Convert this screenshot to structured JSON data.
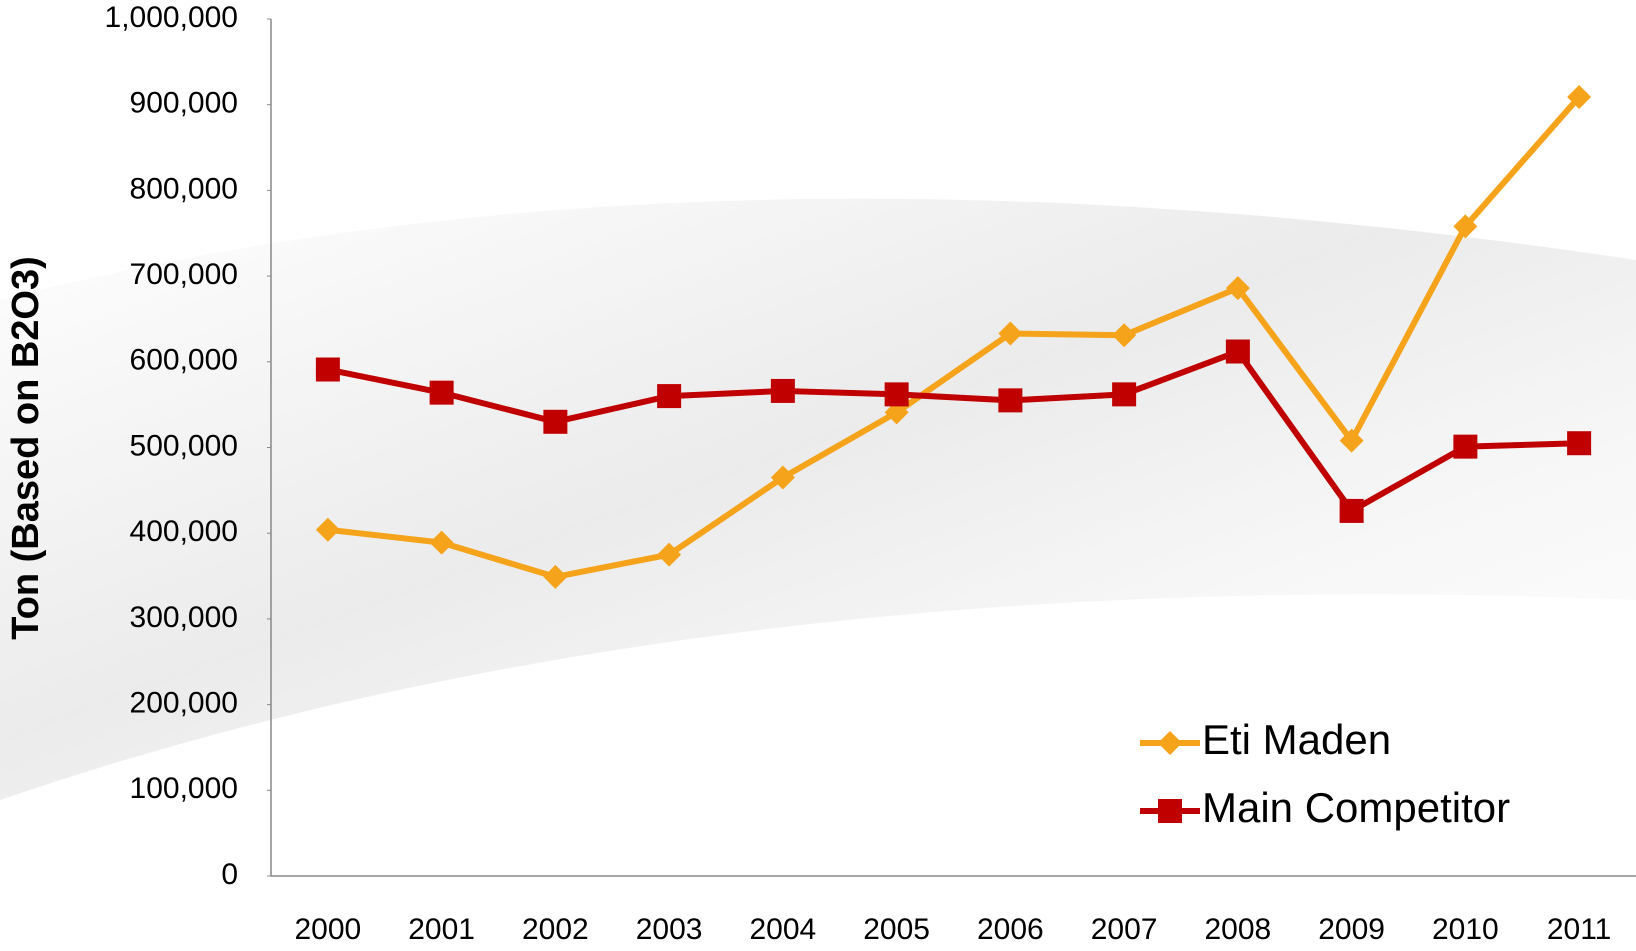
{
  "chart_data": {
    "type": "line",
    "y_label": "Ton (Based on B2O3)",
    "categories": [
      "2000",
      "2001",
      "2002",
      "2003",
      "2004",
      "2005",
      "2006",
      "2007",
      "2008",
      "2009",
      "2010",
      "2011"
    ],
    "series": [
      {
        "name": "Eti Maden",
        "color": "#f5a31a",
        "marker": "diamond",
        "values": [
          404000,
          389000,
          349000,
          375000,
          465000,
          541000,
          633000,
          631000,
          686000,
          508000,
          758000,
          909000
        ]
      },
      {
        "name": "Main Competitor",
        "color": "#c00000",
        "marker": "square",
        "values": [
          591000,
          564000,
          530000,
          560000,
          566000,
          562000,
          555000,
          562000,
          612000,
          426000,
          501000,
          505000
        ]
      }
    ],
    "ylim": [
      0,
      1000000
    ],
    "yticks": [
      0,
      {
        "value": 100000,
        "label": "100,000"
      },
      {
        "value": 200000,
        "label": "200,000"
      },
      {
        "value": 300000,
        "label": "300,000"
      },
      {
        "value": 400000,
        "label": "400,000"
      },
      {
        "value": 500000,
        "label": "500,000"
      },
      {
        "value": 600000,
        "label": "600,000"
      },
      {
        "value": 700000,
        "label": "700,000"
      },
      {
        "value": 800000,
        "label": "800,000"
      },
      {
        "value": 900000,
        "label": "900,000"
      },
      {
        "value": 1000000,
        "label": "1,000,000"
      }
    ],
    "grid": false,
    "legend": "lower right"
  }
}
